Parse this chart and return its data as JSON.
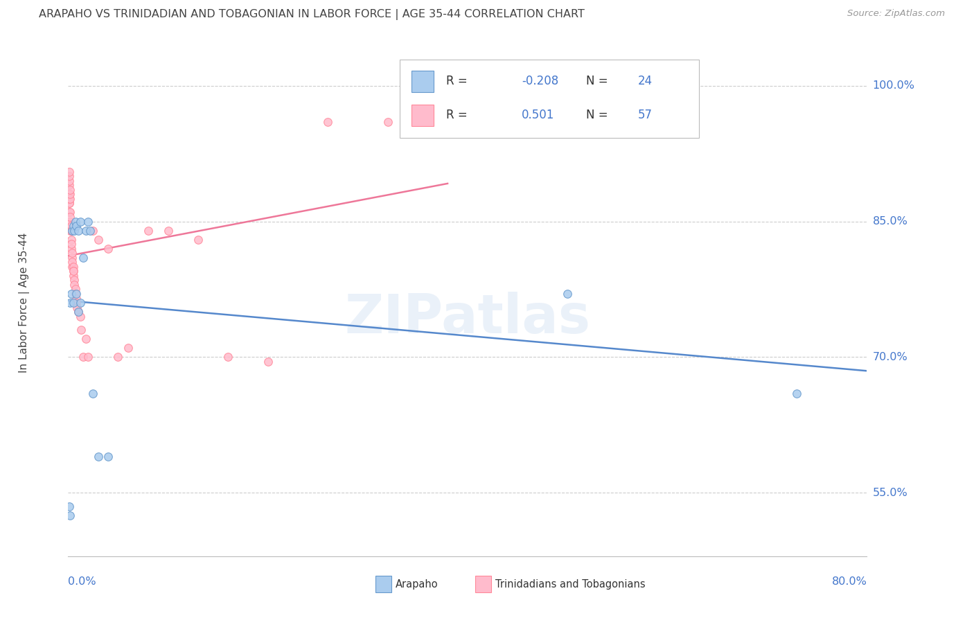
{
  "title": "ARAPAHO VS TRINIDADIAN AND TOBAGONIAN IN LABOR FORCE | AGE 35-44 CORRELATION CHART",
  "source": "Source: ZipAtlas.com",
  "ylabel": "In Labor Force | Age 35-44",
  "watermark": "ZIPatlas",
  "xlim": [
    0.0,
    0.8
  ],
  "ylim": [
    0.48,
    1.04
  ],
  "arapaho_color": "#aaccee",
  "trinidadian_color": "#ffbbcc",
  "arapaho_edge_color": "#6699cc",
  "trinidadian_edge_color": "#ff8899",
  "arapaho_line_color": "#5588cc",
  "trinidadian_line_color": "#ee7799",
  "legend_R_arapaho": "-0.208",
  "legend_N_arapaho": "24",
  "legend_R_trinidadian": "0.501",
  "legend_N_trinidadian": "57",
  "ytick_vals": [
    0.55,
    0.7,
    0.85,
    1.0
  ],
  "ytick_labels": [
    "55.0%",
    "70.0%",
    "85.0%",
    "100.0%"
  ],
  "xtick_left": "0.0%",
  "xtick_right": "80.0%",
  "background_color": "#ffffff",
  "grid_color": "#cccccc",
  "tick_color": "#4477cc",
  "title_color": "#444444",
  "arapaho_x": [
    0.001,
    0.002,
    0.002,
    0.003,
    0.004,
    0.005,
    0.006,
    0.007,
    0.008,
    0.01,
    0.012,
    0.015,
    0.018,
    0.02,
    0.022,
    0.025,
    0.03,
    0.04,
    0.005,
    0.008,
    0.01,
    0.012,
    0.5,
    0.73
  ],
  "arapaho_y": [
    0.535,
    0.525,
    0.76,
    0.77,
    0.84,
    0.845,
    0.84,
    0.85,
    0.845,
    0.84,
    0.85,
    0.81,
    0.84,
    0.85,
    0.84,
    0.66,
    0.59,
    0.59,
    0.76,
    0.77,
    0.75,
    0.76,
    0.77,
    0.66
  ],
  "trinidadian_x": [
    0.001,
    0.001,
    0.001,
    0.001,
    0.001,
    0.001,
    0.001,
    0.001,
    0.001,
    0.001,
    0.002,
    0.002,
    0.002,
    0.002,
    0.002,
    0.002,
    0.002,
    0.002,
    0.003,
    0.003,
    0.003,
    0.003,
    0.003,
    0.004,
    0.004,
    0.004,
    0.004,
    0.005,
    0.005,
    0.005,
    0.005,
    0.006,
    0.006,
    0.007,
    0.007,
    0.008,
    0.008,
    0.009,
    0.01,
    0.012,
    0.013,
    0.015,
    0.018,
    0.02,
    0.025,
    0.03,
    0.04,
    0.05,
    0.06,
    0.08,
    0.1,
    0.13,
    0.16,
    0.2,
    0.26,
    0.32,
    0.38
  ],
  "trinidadian_y": [
    0.87,
    0.88,
    0.89,
    0.895,
    0.9,
    0.905,
    0.86,
    0.87,
    0.875,
    0.88,
    0.85,
    0.86,
    0.875,
    0.88,
    0.885,
    0.84,
    0.85,
    0.855,
    0.83,
    0.84,
    0.845,
    0.82,
    0.825,
    0.81,
    0.815,
    0.8,
    0.805,
    0.8,
    0.795,
    0.79,
    0.795,
    0.785,
    0.78,
    0.775,
    0.77,
    0.765,
    0.76,
    0.755,
    0.75,
    0.745,
    0.73,
    0.7,
    0.72,
    0.7,
    0.84,
    0.83,
    0.82,
    0.7,
    0.71,
    0.84,
    0.84,
    0.83,
    0.7,
    0.695,
    0.96,
    0.96,
    0.96
  ]
}
